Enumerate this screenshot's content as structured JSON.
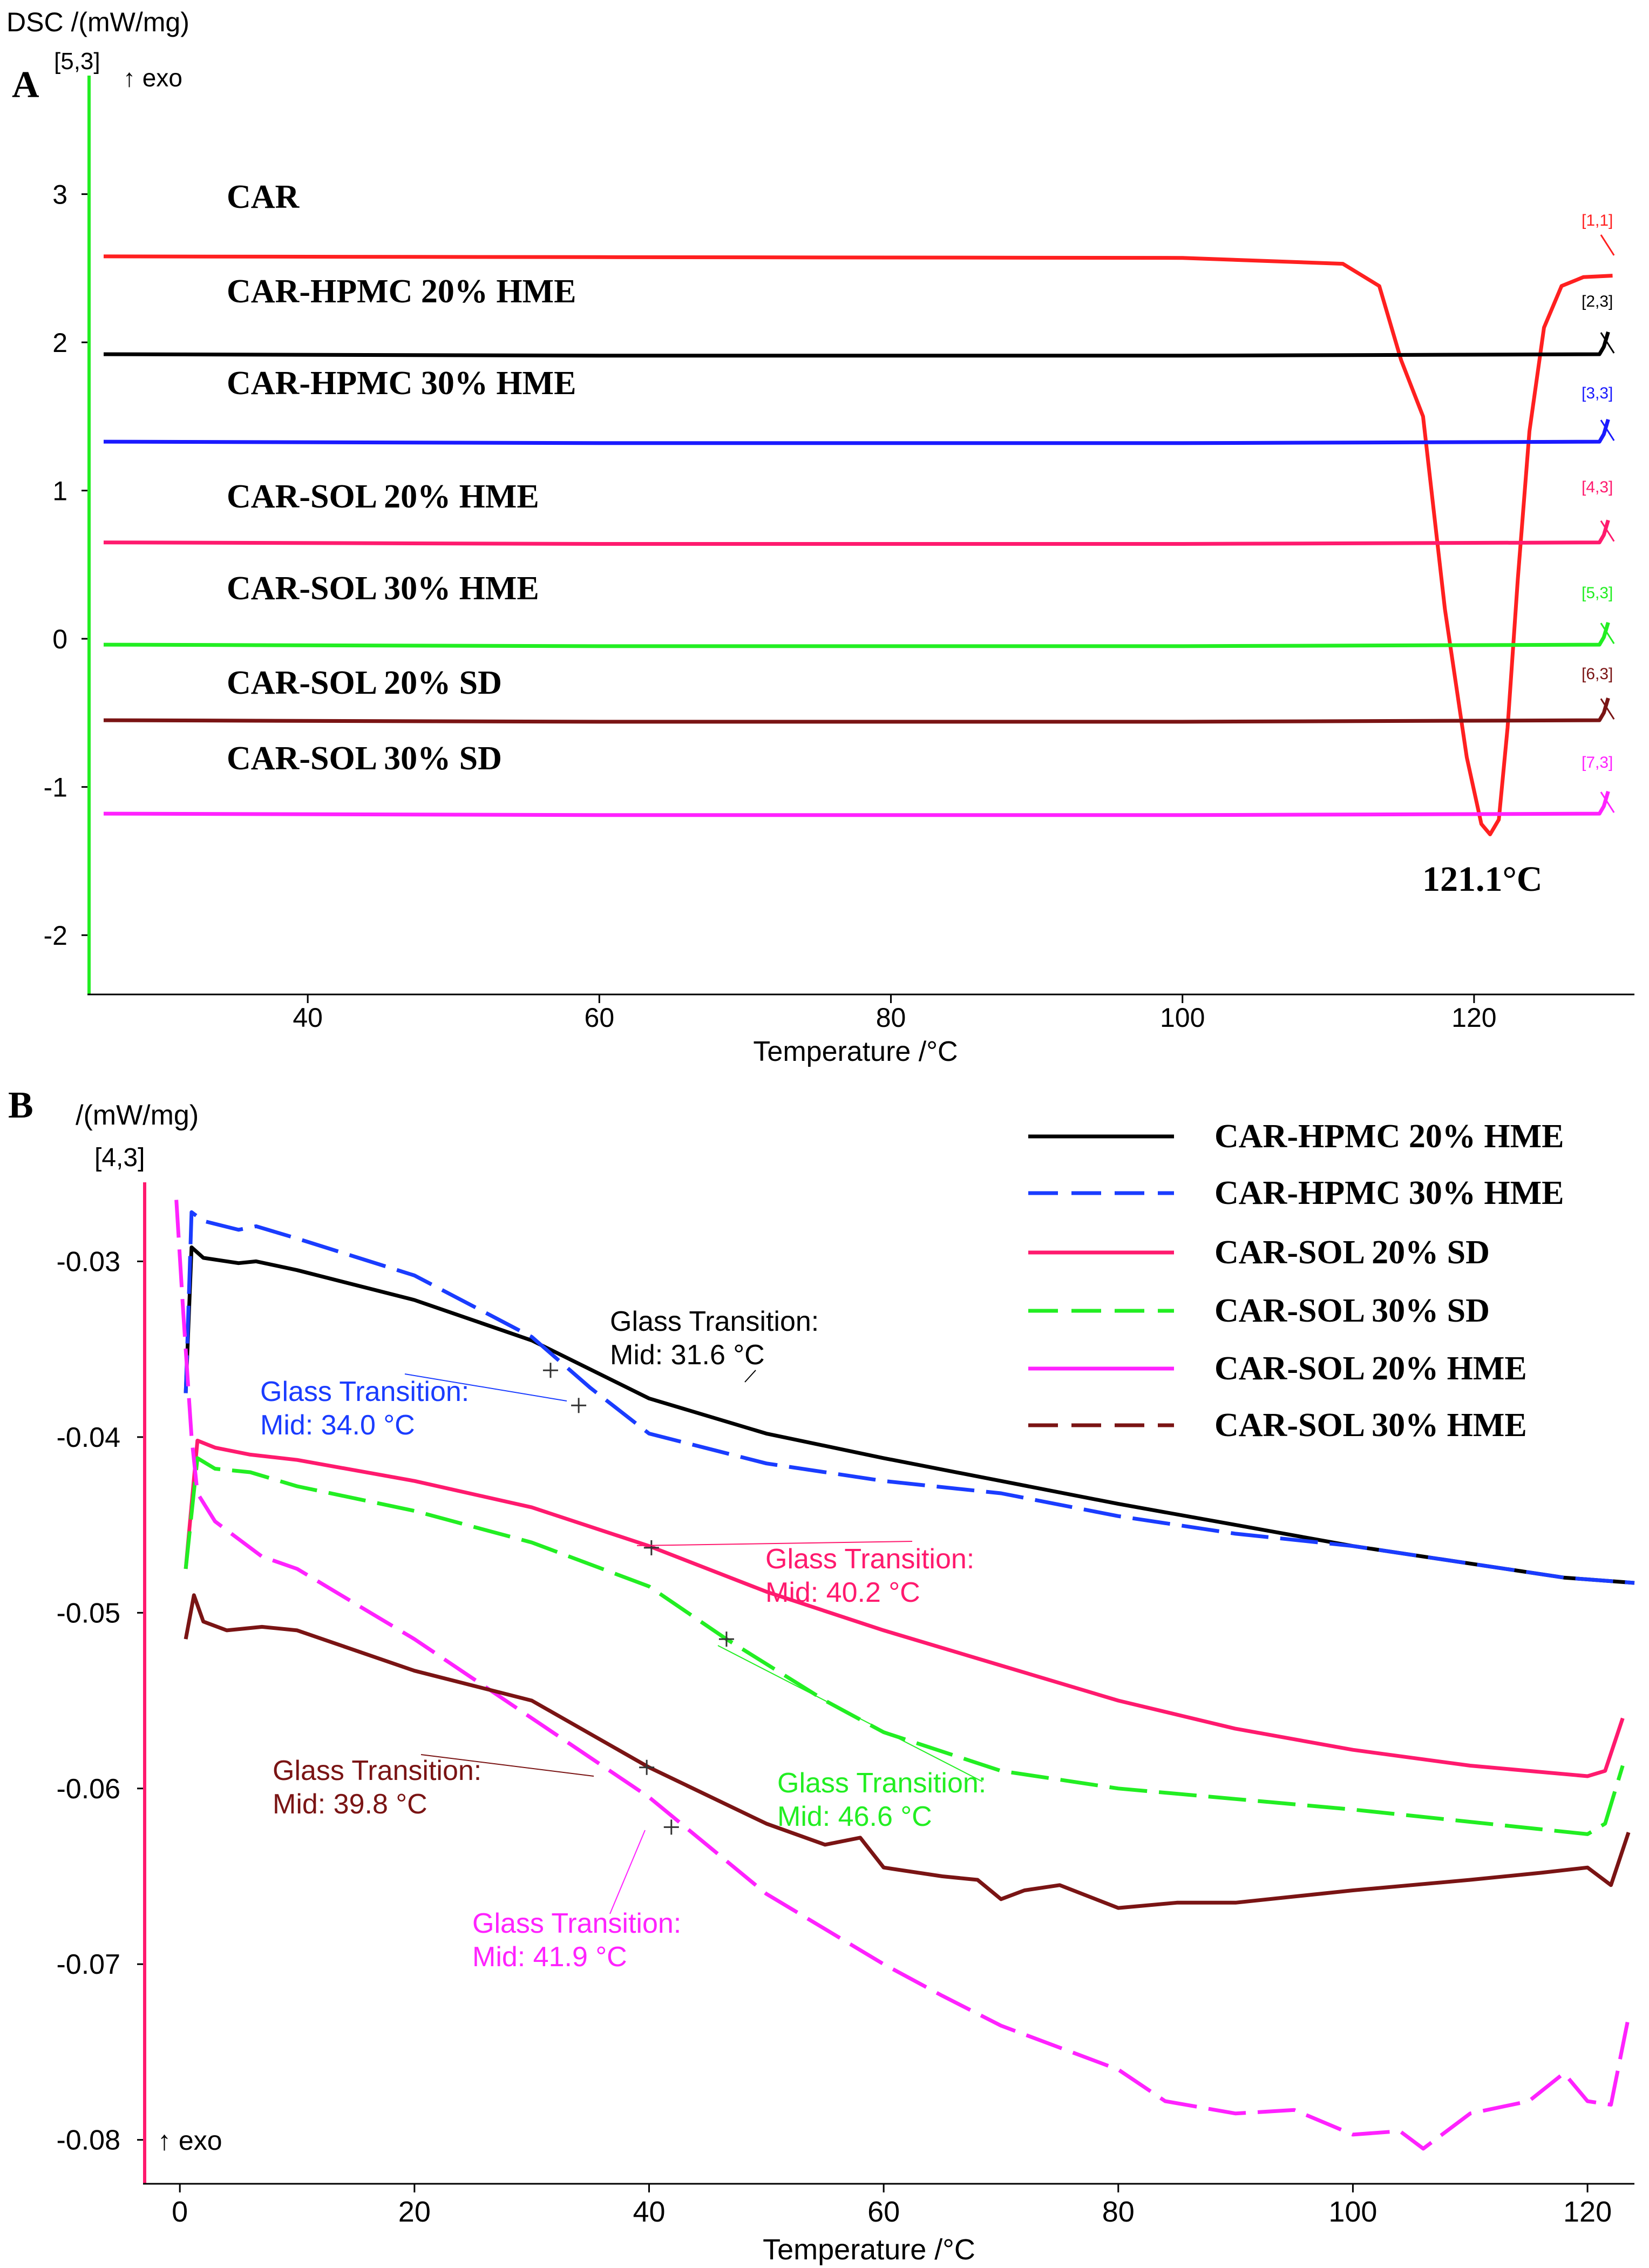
{
  "figure": {
    "panel_a_letter": "A",
    "panel_b_letter": "B"
  },
  "chart_data": [
    {
      "type": "line",
      "panel": "A",
      "y_axis_title": "DSC /(mW/mg)",
      "y_axis_marker": "[5,3]",
      "exo_label": "↑ exo",
      "xlabel": "Temperature /°C",
      "xlim": [
        25,
        131
      ],
      "ylim": [
        -2.4,
        3.8
      ],
      "xticks": [
        40,
        60,
        80,
        100,
        120
      ],
      "yticks": [
        3,
        2,
        1,
        0,
        -1,
        -2
      ],
      "grid": false,
      "annotation": "121.1°C",
      "series": [
        {
          "name": "CAR",
          "tag": "[1,1]",
          "color": "#ff2020",
          "value": 2.58,
          "peak_at": 121.1,
          "peak_min": -1.32,
          "end_value": 2.45
        },
        {
          "name": "CAR-HPMC 20% HME",
          "tag": "[2,3]",
          "color": "#000000",
          "value": 1.92
        },
        {
          "name": "CAR-HPMC 30% HME",
          "tag": "[3,3]",
          "color": "#1a1aff",
          "value": 1.33
        },
        {
          "name": "CAR-SOL 20% HME",
          "tag": "[4,3]",
          "color": "#ff1a6e",
          "value": 0.65
        },
        {
          "name": "CAR-SOL 30% HME",
          "tag": "[5,3]",
          "color": "#22ee22",
          "value": -0.04
        },
        {
          "name": "CAR-SOL 20% SD",
          "tag": "[6,3]",
          "color": "#7a1414",
          "value": -0.55
        },
        {
          "name": "CAR-SOL 30% SD",
          "tag": "[7,3]",
          "color": "#ff22ff",
          "value": -1.18
        }
      ]
    },
    {
      "type": "line",
      "panel": "B",
      "y_axis_title": "/(mW/mg)",
      "y_axis_marker": "[4,3]",
      "exo_label": "↑ exo",
      "xlabel": "Temperature /°C",
      "xlim": [
        -3,
        124
      ],
      "ylim": [
        -0.0825,
        -0.0255
      ],
      "xticks": [
        0,
        20,
        40,
        60,
        80,
        100,
        120
      ],
      "yticks": [
        -0.03,
        -0.04,
        -0.05,
        -0.06,
        -0.07,
        -0.08
      ],
      "grid": false,
      "legend": {
        "position": "top-right",
        "entries": [
          {
            "label": "CAR-HPMC 20% HME",
            "color": "#000000",
            "style": "solid"
          },
          {
            "label": "CAR-HPMC 30% HME",
            "color": "#1a3cff",
            "style": "dashed"
          },
          {
            "label": "CAR-SOL 20% SD",
            "color": "#ff1a6e",
            "style": "solid"
          },
          {
            "label": "CAR-SOL 30% SD",
            "color": "#22ee22",
            "style": "dashed"
          },
          {
            "label": "CAR-SOL 20% HME",
            "color": "#ff22ff",
            "style": "solid"
          },
          {
            "label": "CAR-SOL 30% HME",
            "color": "#7a1414",
            "style": "dashed"
          }
        ]
      },
      "series": [
        {
          "name": "HPMC20",
          "color": "#000000",
          "dash": false,
          "points": [
            [
              0.5,
              -0.0375
            ],
            [
              1,
              -0.0292
            ],
            [
              2,
              -0.0298
            ],
            [
              5,
              -0.0301
            ],
            [
              6.5,
              -0.03
            ],
            [
              10,
              -0.0305
            ],
            [
              20,
              -0.0322
            ],
            [
              30,
              -0.0345
            ],
            [
              40,
              -0.0378
            ],
            [
              50,
              -0.0398
            ],
            [
              60,
              -0.0412
            ],
            [
              70,
              -0.0425
            ],
            [
              80,
              -0.0438
            ],
            [
              90,
              -0.045
            ],
            [
              100,
              -0.0462
            ],
            [
              110,
              -0.0472
            ],
            [
              118,
              -0.048
            ],
            [
              124,
              -0.0483
            ]
          ]
        },
        {
          "name": "HPMC30",
          "color": "#1a3cff",
          "dash": true,
          "points": [
            [
              0.5,
              -0.0375
            ],
            [
              1,
              -0.0272
            ],
            [
              2,
              -0.0277
            ],
            [
              5,
              -0.0282
            ],
            [
              6.5,
              -0.028
            ],
            [
              10,
              -0.0287
            ],
            [
              20,
              -0.0308
            ],
            [
              30,
              -0.0343
            ],
            [
              35,
              -0.0372
            ],
            [
              40,
              -0.0398
            ],
            [
              50,
              -0.0415
            ],
            [
              60,
              -0.0425
            ],
            [
              70,
              -0.0432
            ],
            [
              80,
              -0.0445
            ],
            [
              90,
              -0.0455
            ],
            [
              100,
              -0.0462
            ],
            [
              110,
              -0.0472
            ],
            [
              118,
              -0.048
            ],
            [
              124,
              -0.0483
            ]
          ]
        },
        {
          "name": "SOL20SD",
          "color": "#ff1a6e",
          "dash": false,
          "points": [
            [
              0.5,
              -0.0475
            ],
            [
              1.5,
              -0.0402
            ],
            [
              3,
              -0.0406
            ],
            [
              6,
              -0.041
            ],
            [
              10,
              -0.0413
            ],
            [
              20,
              -0.0425
            ],
            [
              30,
              -0.044
            ],
            [
              40,
              -0.0462
            ],
            [
              50,
              -0.0488
            ],
            [
              60,
              -0.051
            ],
            [
              70,
              -0.053
            ],
            [
              80,
              -0.055
            ],
            [
              90,
              -0.0566
            ],
            [
              100,
              -0.0578
            ],
            [
              110,
              -0.0587
            ],
            [
              120,
              -0.0593
            ],
            [
              121.5,
              -0.059
            ],
            [
              123,
              -0.056
            ]
          ]
        },
        {
          "name": "SOL30SD",
          "color": "#22ee22",
          "dash": true,
          "points": [
            [
              0.5,
              -0.0475
            ],
            [
              1.5,
              -0.0412
            ],
            [
              3,
              -0.0418
            ],
            [
              6,
              -0.042
            ],
            [
              10,
              -0.0428
            ],
            [
              20,
              -0.0442
            ],
            [
              30,
              -0.046
            ],
            [
              40,
              -0.0485
            ],
            [
              46.6,
              -0.0515
            ],
            [
              55,
              -0.055
            ],
            [
              60,
              -0.0568
            ],
            [
              70,
              -0.059
            ],
            [
              80,
              -0.06
            ],
            [
              90,
              -0.0606
            ],
            [
              100,
              -0.0612
            ],
            [
              110,
              -0.0619
            ],
            [
              120,
              -0.0626
            ],
            [
              121.5,
              -0.062
            ],
            [
              123,
              -0.0587
            ]
          ]
        },
        {
          "name": "SOL20HME",
          "color": "#ff22ff",
          "dash": true,
          "points": [
            [
              -0.3,
              -0.0265
            ],
            [
              0.3,
              -0.033
            ],
            [
              1,
              -0.04
            ],
            [
              1.5,
              -0.0432
            ],
            [
              3,
              -0.0448
            ],
            [
              7,
              -0.0468
            ],
            [
              10,
              -0.0475
            ],
            [
              20,
              -0.0515
            ],
            [
              30,
              -0.056
            ],
            [
              40,
              -0.0605
            ],
            [
              50,
              -0.066
            ],
            [
              60,
              -0.07
            ],
            [
              65,
              -0.0718
            ],
            [
              70,
              -0.0735
            ],
            [
              76,
              -0.075
            ],
            [
              80,
              -0.076
            ],
            [
              84,
              -0.0778
            ],
            [
              90,
              -0.0785
            ],
            [
              95,
              -0.0783
            ],
            [
              100,
              -0.0797
            ],
            [
              104,
              -0.0795
            ],
            [
              106,
              -0.0805
            ],
            [
              110,
              -0.0785
            ],
            [
              115,
              -0.0778
            ],
            [
              118,
              -0.0762
            ],
            [
              120,
              -0.0778
            ],
            [
              122,
              -0.078
            ],
            [
              123.5,
              -0.073
            ]
          ]
        },
        {
          "name": "SOL30HME",
          "color": "#7a1414",
          "dash": false,
          "points": [
            [
              0.5,
              -0.0515
            ],
            [
              1.2,
              -0.049
            ],
            [
              2,
              -0.0505
            ],
            [
              4,
              -0.051
            ],
            [
              7,
              -0.0508
            ],
            [
              10,
              -0.051
            ],
            [
              20,
              -0.0533
            ],
            [
              30,
              -0.055
            ],
            [
              40,
              -0.0588
            ],
            [
              50,
              -0.062
            ],
            [
              55,
              -0.0632
            ],
            [
              58,
              -0.0628
            ],
            [
              60,
              -0.0645
            ],
            [
              65,
              -0.065
            ],
            [
              68,
              -0.0652
            ],
            [
              70,
              -0.0663
            ],
            [
              72,
              -0.0658
            ],
            [
              75,
              -0.0655
            ],
            [
              80,
              -0.0668
            ],
            [
              85,
              -0.0665
            ],
            [
              90,
              -0.0665
            ],
            [
              100,
              -0.0658
            ],
            [
              110,
              -0.0652
            ],
            [
              116,
              -0.0648
            ],
            [
              120,
              -0.0645
            ],
            [
              122,
              -0.0655
            ],
            [
              123.5,
              -0.0625
            ]
          ]
        }
      ],
      "annotations": [
        {
          "title": "Glass Transition:",
          "mid": "Mid:  31.6 °C",
          "color": "#000000",
          "at": [
            31.6,
            -0.0362
          ]
        },
        {
          "title": "Glass Transition:",
          "mid": "Mid:  34.0 °C",
          "color": "#1a3cff",
          "at": [
            34.0,
            -0.0382
          ]
        },
        {
          "title": "Glass Transition:",
          "mid": "Mid:  40.2 °C",
          "color": "#ff1a6e",
          "at": [
            40.2,
            -0.0463
          ]
        },
        {
          "title": "Glass Transition:",
          "mid": "Mid:  46.6 °C",
          "color": "#22ee22",
          "at": [
            46.6,
            -0.0515
          ]
        },
        {
          "title": "Glass Transition:",
          "mid": "Mid:  39.8 °C",
          "color": "#7a1414",
          "at": [
            39.8,
            -0.0588
          ]
        },
        {
          "title": "Glass Transition:",
          "mid": "Mid:  41.9 °C",
          "color": "#ff22ff",
          "at": [
            41.9,
            -0.0622
          ]
        }
      ]
    }
  ]
}
